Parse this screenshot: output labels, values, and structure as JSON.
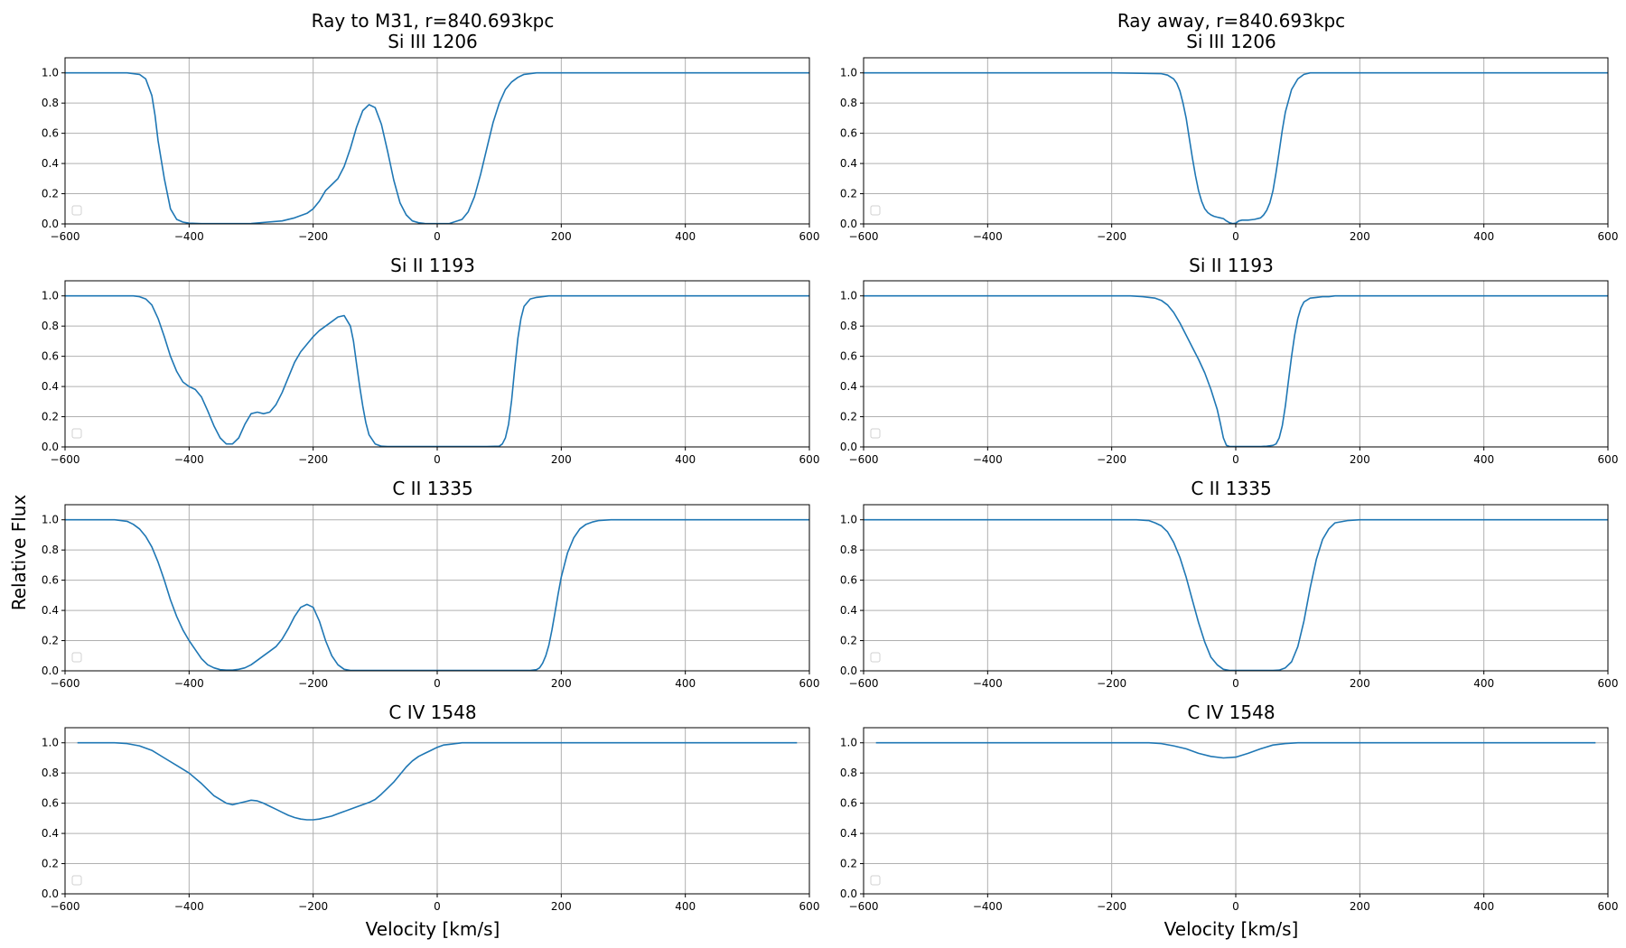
{
  "figure": {
    "ylabel": "Relative Flux",
    "xlabel": "Velocity [km/s]",
    "column_titles": [
      "Ray to M31, r=840.693kpc",
      "Ray away, r=840.693kpc"
    ],
    "line_color": "#1f77b4",
    "grid_color": "#b0b0b0"
  },
  "chart_data": [
    {
      "type": "line",
      "title": "Si III 1206",
      "xlim": [
        -600,
        600
      ],
      "ylim": [
        0,
        1.1
      ],
      "xticks": [
        "−600",
        "−400",
        "−200",
        "0",
        "200",
        "400",
        "600"
      ],
      "yticks": [
        "0.0",
        "0.2",
        "0.4",
        "0.6",
        "0.8",
        "1.0"
      ],
      "grid": true,
      "legend": "lower-left (empty)",
      "x": [
        -600,
        -500,
        -480,
        -470,
        -460,
        -455,
        -450,
        -440,
        -430,
        -420,
        -410,
        -400,
        -380,
        -350,
        -300,
        -250,
        -230,
        -210,
        -200,
        -190,
        -180,
        -170,
        -160,
        -150,
        -140,
        -130,
        -120,
        -110,
        -100,
        -90,
        -80,
        -70,
        -60,
        -50,
        -40,
        -30,
        -20,
        0,
        20,
        40,
        50,
        60,
        70,
        80,
        90,
        100,
        110,
        120,
        130,
        140,
        160,
        200,
        400,
        600
      ],
      "y": [
        1,
        1,
        0.99,
        0.96,
        0.85,
        0.72,
        0.55,
        0.3,
        0.1,
        0.03,
        0.012,
        0.005,
        0.002,
        0.002,
        0.003,
        0.02,
        0.04,
        0.07,
        0.1,
        0.15,
        0.22,
        0.26,
        0.3,
        0.38,
        0.5,
        0.64,
        0.75,
        0.79,
        0.77,
        0.66,
        0.48,
        0.29,
        0.14,
        0.06,
        0.02,
        0.008,
        0.003,
        0.002,
        0.003,
        0.03,
        0.08,
        0.18,
        0.33,
        0.5,
        0.67,
        0.8,
        0.89,
        0.94,
        0.97,
        0.99,
        1,
        1,
        1,
        1
      ]
    },
    {
      "type": "line",
      "title": "Si III 1206",
      "xlim": [
        -600,
        600
      ],
      "ylim": [
        0,
        1.1
      ],
      "xticks": [
        "−600",
        "−400",
        "−200",
        "0",
        "200",
        "400",
        "600"
      ],
      "yticks": [
        "0.0",
        "0.2",
        "0.4",
        "0.6",
        "0.8",
        "1.0"
      ],
      "grid": true,
      "legend": "lower-left (empty)",
      "x": [
        -600,
        -200,
        -120,
        -110,
        -100,
        -95,
        -90,
        -85,
        -80,
        -75,
        -70,
        -65,
        -60,
        -55,
        -50,
        -45,
        -40,
        -35,
        -30,
        -25,
        -20,
        -15,
        -10,
        -5,
        0,
        5,
        10,
        20,
        30,
        40,
        45,
        50,
        55,
        60,
        65,
        70,
        75,
        80,
        90,
        100,
        110,
        120,
        140,
        200,
        600
      ],
      "y": [
        1,
        1,
        0.995,
        0.985,
        0.96,
        0.93,
        0.88,
        0.8,
        0.7,
        0.57,
        0.44,
        0.32,
        0.22,
        0.15,
        0.1,
        0.075,
        0.06,
        0.05,
        0.045,
        0.04,
        0.035,
        0.02,
        0.008,
        0.002,
        0.005,
        0.02,
        0.025,
        0.025,
        0.03,
        0.04,
        0.06,
        0.09,
        0.14,
        0.22,
        0.34,
        0.48,
        0.62,
        0.74,
        0.89,
        0.96,
        0.99,
        1,
        1,
        1,
        1
      ]
    },
    {
      "type": "line",
      "title": "Si II 1193",
      "xlim": [
        -600,
        600
      ],
      "ylim": [
        0,
        1.1
      ],
      "xticks": [
        "−600",
        "−400",
        "−200",
        "0",
        "200",
        "400",
        "600"
      ],
      "yticks": [
        "0.0",
        "0.2",
        "0.4",
        "0.6",
        "0.8",
        "1.0"
      ],
      "grid": true,
      "legend": "lower-left (empty)",
      "x": [
        -600,
        -490,
        -480,
        -470,
        -460,
        -450,
        -440,
        -430,
        -420,
        -410,
        -400,
        -390,
        -380,
        -370,
        -360,
        -350,
        -340,
        -330,
        -320,
        -310,
        -300,
        -290,
        -280,
        -270,
        -260,
        -250,
        -240,
        -230,
        -220,
        -210,
        -200,
        -190,
        -180,
        -170,
        -160,
        -150,
        -140,
        -135,
        -130,
        -125,
        -120,
        -115,
        -110,
        -100,
        -90,
        -80,
        0,
        80,
        100,
        105,
        110,
        115,
        120,
        125,
        130,
        135,
        140,
        150,
        160,
        180,
        200,
        600
      ],
      "y": [
        1,
        1,
        0.995,
        0.98,
        0.94,
        0.85,
        0.73,
        0.6,
        0.5,
        0.43,
        0.4,
        0.38,
        0.33,
        0.24,
        0.14,
        0.06,
        0.02,
        0.02,
        0.06,
        0.15,
        0.22,
        0.23,
        0.22,
        0.23,
        0.28,
        0.36,
        0.46,
        0.56,
        0.63,
        0.68,
        0.73,
        0.77,
        0.8,
        0.83,
        0.86,
        0.87,
        0.8,
        0.7,
        0.55,
        0.4,
        0.27,
        0.16,
        0.08,
        0.02,
        0.005,
        0.003,
        0.003,
        0.003,
        0.005,
        0.02,
        0.06,
        0.15,
        0.31,
        0.52,
        0.72,
        0.85,
        0.93,
        0.98,
        0.99,
        1,
        1,
        1
      ]
    },
    {
      "type": "line",
      "title": "Si II 1193",
      "xlim": [
        -600,
        600
      ],
      "ylim": [
        0,
        1.1
      ],
      "xticks": [
        "−600",
        "−400",
        "−200",
        "0",
        "200",
        "400",
        "600"
      ],
      "yticks": [
        "0.0",
        "0.2",
        "0.4",
        "0.6",
        "0.8",
        "1.0"
      ],
      "grid": true,
      "legend": "lower-left (empty)",
      "x": [
        -600,
        -170,
        -150,
        -130,
        -120,
        -110,
        -100,
        -90,
        -80,
        -70,
        -60,
        -50,
        -40,
        -30,
        -25,
        -20,
        -15,
        -10,
        0,
        20,
        40,
        50,
        60,
        65,
        70,
        75,
        80,
        85,
        90,
        95,
        100,
        105,
        110,
        120,
        130,
        140,
        150,
        160,
        200,
        600
      ],
      "y": [
        1,
        1,
        0.995,
        0.985,
        0.97,
        0.94,
        0.89,
        0.82,
        0.74,
        0.66,
        0.58,
        0.49,
        0.38,
        0.25,
        0.16,
        0.06,
        0.01,
        0.003,
        0.003,
        0.003,
        0.003,
        0.005,
        0.01,
        0.02,
        0.06,
        0.14,
        0.27,
        0.44,
        0.6,
        0.74,
        0.85,
        0.92,
        0.96,
        0.985,
        0.99,
        0.995,
        0.995,
        1,
        1,
        1
      ]
    },
    {
      "type": "line",
      "title": "C II 1335",
      "xlim": [
        -600,
        600
      ],
      "ylim": [
        0,
        1.1
      ],
      "xticks": [
        "−600",
        "−400",
        "−200",
        "0",
        "200",
        "400",
        "600"
      ],
      "yticks": [
        "0.0",
        "0.2",
        "0.4",
        "0.6",
        "0.8",
        "1.0"
      ],
      "grid": true,
      "legend": "lower-left (empty)",
      "x": [
        -600,
        -520,
        -500,
        -490,
        -480,
        -470,
        -460,
        -450,
        -440,
        -430,
        -420,
        -410,
        -400,
        -390,
        -380,
        -370,
        -360,
        -350,
        -340,
        -330,
        -320,
        -310,
        -300,
        -290,
        -280,
        -270,
        -260,
        -250,
        -240,
        -230,
        -220,
        -210,
        -200,
        -190,
        -180,
        -170,
        -160,
        -150,
        -140,
        0,
        150,
        160,
        165,
        170,
        175,
        180,
        185,
        190,
        195,
        200,
        210,
        220,
        230,
        240,
        250,
        260,
        280,
        300,
        600
      ],
      "y": [
        1,
        1,
        0.99,
        0.97,
        0.94,
        0.89,
        0.82,
        0.72,
        0.6,
        0.47,
        0.36,
        0.27,
        0.2,
        0.14,
        0.08,
        0.04,
        0.02,
        0.008,
        0.005,
        0.005,
        0.01,
        0.02,
        0.04,
        0.07,
        0.1,
        0.13,
        0.16,
        0.21,
        0.28,
        0.36,
        0.42,
        0.44,
        0.42,
        0.33,
        0.2,
        0.1,
        0.04,
        0.01,
        0.003,
        0.003,
        0.003,
        0.008,
        0.02,
        0.05,
        0.1,
        0.17,
        0.27,
        0.39,
        0.51,
        0.62,
        0.78,
        0.88,
        0.94,
        0.97,
        0.985,
        0.995,
        1,
        1,
        1
      ]
    },
    {
      "type": "line",
      "title": "C II 1335",
      "xlim": [
        -600,
        600
      ],
      "ylim": [
        0,
        1.1
      ],
      "xticks": [
        "−600",
        "−400",
        "−200",
        "0",
        "200",
        "400",
        "600"
      ],
      "yticks": [
        "0.0",
        "0.2",
        "0.4",
        "0.6",
        "0.8",
        "1.0"
      ],
      "grid": true,
      "legend": "lower-left (empty)",
      "x": [
        -600,
        -160,
        -140,
        -130,
        -120,
        -110,
        -100,
        -90,
        -80,
        -70,
        -60,
        -50,
        -40,
        -30,
        -20,
        -10,
        0,
        20,
        40,
        60,
        70,
        80,
        90,
        100,
        110,
        120,
        130,
        140,
        150,
        160,
        180,
        200,
        600
      ],
      "y": [
        1,
        1,
        0.995,
        0.98,
        0.96,
        0.92,
        0.85,
        0.75,
        0.62,
        0.47,
        0.32,
        0.19,
        0.09,
        0.04,
        0.01,
        0.003,
        0.003,
        0.003,
        0.003,
        0.003,
        0.005,
        0.02,
        0.06,
        0.16,
        0.33,
        0.55,
        0.74,
        0.87,
        0.94,
        0.98,
        0.995,
        1,
        1
      ]
    },
    {
      "type": "line",
      "title": "C IV 1548",
      "xlim": [
        -600,
        600
      ],
      "ylim": [
        0,
        1.1
      ],
      "xticks": [
        "−600",
        "−400",
        "−200",
        "0",
        "200",
        "400",
        "600"
      ],
      "yticks": [
        "0.0",
        "0.2",
        "0.4",
        "0.6",
        "0.8",
        "1.0"
      ],
      "grid": true,
      "legend": "lower-left (empty)",
      "x": [
        -580,
        -520,
        -500,
        -480,
        -460,
        -440,
        -420,
        -400,
        -380,
        -360,
        -340,
        -330,
        -320,
        -310,
        -300,
        -290,
        -280,
        -270,
        -260,
        -250,
        -240,
        -230,
        -220,
        -210,
        -200,
        -190,
        -180,
        -170,
        -160,
        -150,
        -140,
        -130,
        -120,
        -110,
        -100,
        -90,
        -80,
        -70,
        -60,
        -50,
        -40,
        -30,
        -20,
        -10,
        0,
        10,
        20,
        30,
        40,
        50,
        60,
        80,
        100,
        200,
        400,
        580
      ],
      "y": [
        1,
        1,
        0.995,
        0.98,
        0.95,
        0.9,
        0.85,
        0.8,
        0.73,
        0.65,
        0.6,
        0.59,
        0.6,
        0.61,
        0.62,
        0.615,
        0.6,
        0.58,
        0.56,
        0.54,
        0.52,
        0.505,
        0.495,
        0.49,
        0.49,
        0.495,
        0.505,
        0.515,
        0.53,
        0.545,
        0.56,
        0.575,
        0.59,
        0.605,
        0.625,
        0.66,
        0.7,
        0.74,
        0.79,
        0.84,
        0.88,
        0.91,
        0.93,
        0.95,
        0.97,
        0.985,
        0.99,
        0.995,
        1,
        1,
        1,
        1,
        1,
        1,
        1,
        1
      ]
    },
    {
      "type": "line",
      "title": "C IV 1548",
      "xlim": [
        -600,
        600
      ],
      "ylim": [
        0,
        1.1
      ],
      "xticks": [
        "−600",
        "−400",
        "−200",
        "0",
        "200",
        "400",
        "600"
      ],
      "yticks": [
        "0.0",
        "0.2",
        "0.4",
        "0.6",
        "0.8",
        "1.0"
      ],
      "grid": true,
      "legend": "lower-left (empty)",
      "x": [
        -580,
        -140,
        -120,
        -100,
        -80,
        -60,
        -40,
        -20,
        0,
        20,
        40,
        60,
        80,
        100,
        120,
        580
      ],
      "y": [
        1,
        1,
        0.995,
        0.98,
        0.96,
        0.93,
        0.91,
        0.9,
        0.905,
        0.93,
        0.96,
        0.985,
        0.995,
        1,
        1,
        1
      ]
    }
  ]
}
